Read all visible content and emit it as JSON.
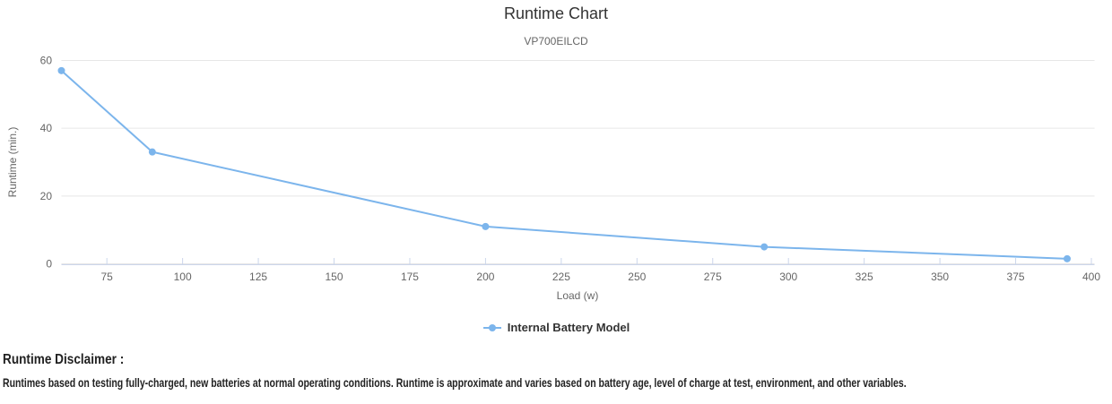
{
  "chart_data": {
    "type": "line",
    "title": "Runtime Chart",
    "subtitle": "VP700EILCD",
    "xlabel": "Load (w)",
    "ylabel": "Runtime (min.)",
    "xlim": [
      60,
      400
    ],
    "ylim": [
      0,
      60
    ],
    "x_ticks": [
      75,
      100,
      125,
      150,
      175,
      200,
      225,
      250,
      275,
      300,
      325,
      350,
      375,
      400
    ],
    "y_ticks": [
      0,
      20,
      40,
      60
    ],
    "grid": "horizontal gridlines only",
    "legend_position": "bottom-center",
    "series": [
      {
        "name": "Internal Battery Model",
        "color": "#7cb5ec",
        "x": [
          60,
          90,
          200,
          292,
          392
        ],
        "y": [
          57,
          33,
          11,
          5,
          1.5
        ]
      }
    ]
  },
  "colors": {
    "series_line": "#7cb5ec",
    "grid_line": "#e6e6e6",
    "axis_line": "#ccd6eb",
    "tick_mark": "#ccd6eb",
    "title_text": "#333333",
    "subtitle_text": "#666666",
    "tick_label_text": "#666666",
    "axis_title_text": "#666666",
    "legend_text": "#333333",
    "disclaimer_text": "#222222"
  },
  "disclaimer": {
    "heading": "Runtime Disclaimer :",
    "body": "Runtimes based on testing fully-charged, new batteries at normal operating conditions. Runtime is approximate and varies based on battery age, level of charge at test, environment, and other variables."
  }
}
